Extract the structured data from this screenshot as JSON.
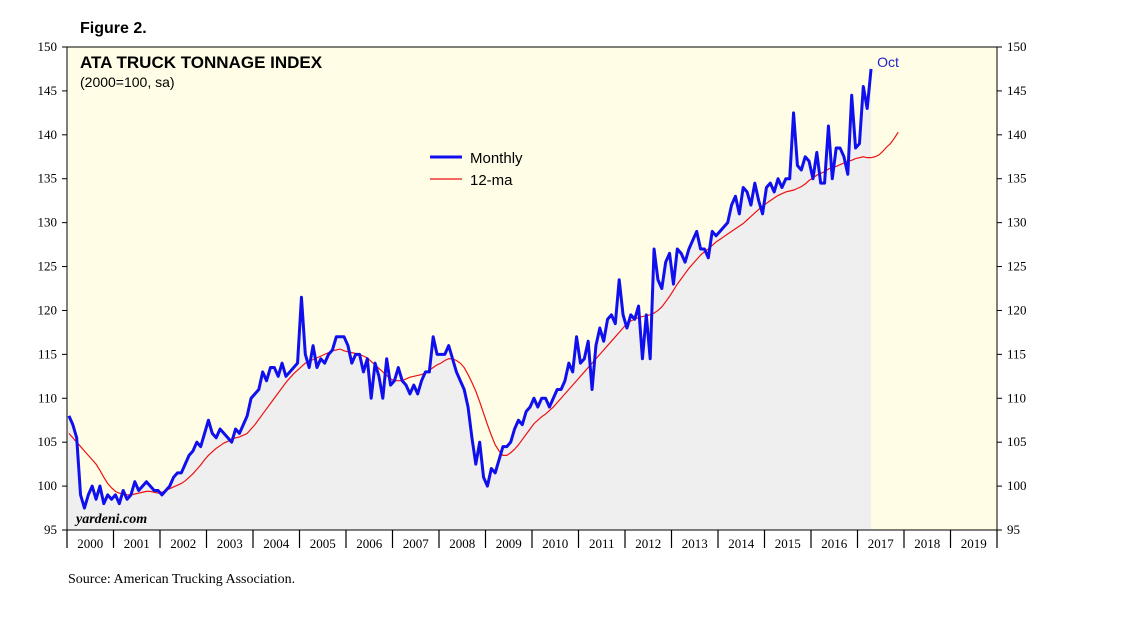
{
  "figure_label": "Figure 2.",
  "source": "Source: American Trucking Association.",
  "watermark": "yardeni.com",
  "colors": {
    "plot_bg": "#fffde6",
    "area_fill": "#efefef",
    "monthly": "#1010ee",
    "ma": "#ee1111",
    "annotation": "#1f1fcc"
  },
  "chart_data": {
    "type": "line",
    "title": "ATA TRUCK TONNAGE INDEX",
    "subtitle": "(2000=100, sa)",
    "xlabel": "",
    "ylabel": "",
    "xlim": [
      2000,
      2020
    ],
    "ylim": [
      95,
      150
    ],
    "yticks": [
      95,
      100,
      105,
      110,
      115,
      120,
      125,
      130,
      135,
      140,
      145,
      150
    ],
    "xtick_labels": [
      "2000",
      "2001",
      "2002",
      "2003",
      "2004",
      "2005",
      "2006",
      "2007",
      "2008",
      "2009",
      "2010",
      "2011",
      "2012",
      "2013",
      "2014",
      "2015",
      "2016",
      "2017",
      "2018",
      "2019"
    ],
    "legend": [
      "Monthly",
      "12-ma"
    ],
    "legend_position": "top-center",
    "annotation": {
      "text": "Oct",
      "series": "Monthly"
    },
    "series": [
      {
        "name": "Monthly",
        "start": [
          2000,
          1
        ],
        "values": [
          108.0,
          107.0,
          105.5,
          99.0,
          97.5,
          99.0,
          100.0,
          98.5,
          100.0,
          98.0,
          99.0,
          98.5,
          99.0,
          98.0,
          99.5,
          98.5,
          99.0,
          100.5,
          99.5,
          100.0,
          100.5,
          100.0,
          99.5,
          99.5,
          99.0,
          99.5,
          100.0,
          101.0,
          101.5,
          101.5,
          102.5,
          103.5,
          104.0,
          105.0,
          104.5,
          106.0,
          107.5,
          106.0,
          105.5,
          106.5,
          106.0,
          105.5,
          105.0,
          106.5,
          106.0,
          107.0,
          108.0,
          110.0,
          110.5,
          111.0,
          113.0,
          112.0,
          113.5,
          113.5,
          112.5,
          114.0,
          112.5,
          113.0,
          113.5,
          114.0,
          121.5,
          115.0,
          113.5,
          116.0,
          113.5,
          114.5,
          114.0,
          115.0,
          115.5,
          117.0,
          117.0,
          117.0,
          116.0,
          114.0,
          115.0,
          115.0,
          113.0,
          114.5,
          110.0,
          114.0,
          112.5,
          110.0,
          114.5,
          111.5,
          112.0,
          113.5,
          112.0,
          111.5,
          110.5,
          111.5,
          110.5,
          112.0,
          113.0,
          113.0,
          117.0,
          115.0,
          115.0,
          115.0,
          116.0,
          114.5,
          113.0,
          112.0,
          111.0,
          109.0,
          105.5,
          102.5,
          105.0,
          101.0,
          100.0,
          102.0,
          101.5,
          103.0,
          104.5,
          104.5,
          105.0,
          106.5,
          107.5,
          107.0,
          108.5,
          109.0,
          110.0,
          109.0,
          110.0,
          110.0,
          109.0,
          110.0,
          111.0,
          111.0,
          112.0,
          114.0,
          113.0,
          117.0,
          114.0,
          114.5,
          116.5,
          111.0,
          116.0,
          118.0,
          116.5,
          119.0,
          119.5,
          118.5,
          123.5,
          119.5,
          118.0,
          119.5,
          119.0,
          120.5,
          114.5,
          119.5,
          114.5,
          127.0,
          123.5,
          122.5,
          125.5,
          126.5,
          123.0,
          127.0,
          126.5,
          125.5,
          127.0,
          128.0,
          129.0,
          127.0,
          127.0,
          126.0,
          129.0,
          128.5,
          129.0,
          129.5,
          130.0,
          132.0,
          133.0,
          131.0,
          134.0,
          133.5,
          132.0,
          134.5,
          132.5,
          131.0,
          134.0,
          134.5,
          133.5,
          135.0,
          134.0,
          135.0,
          135.0,
          142.5,
          136.5,
          136.0,
          137.5,
          137.0,
          135.0,
          138.0,
          134.5,
          134.5,
          141.0,
          135.0,
          138.5,
          138.5,
          137.5,
          135.5,
          144.5,
          138.5,
          139.0,
          145.5,
          143.0,
          147.5
        ]
      },
      {
        "name": "12-ma",
        "start": [
          2000,
          1
        ],
        "values": [
          106.0,
          105.5,
          105.0,
          104.5,
          104.0,
          103.5,
          103.0,
          102.5,
          101.8,
          101.0,
          100.3,
          99.8,
          99.4,
          99.2,
          99.1,
          99.0,
          99.0,
          99.1,
          99.2,
          99.3,
          99.4,
          99.4,
          99.3,
          99.2,
          99.3,
          99.5,
          99.7,
          99.9,
          100.1,
          100.3,
          100.6,
          101.0,
          101.4,
          101.9,
          102.4,
          103.0,
          103.5,
          103.9,
          104.3,
          104.6,
          104.9,
          105.1,
          105.3,
          105.5,
          105.6,
          105.8,
          106.0,
          106.5,
          107.0,
          107.6,
          108.2,
          108.8,
          109.4,
          110.0,
          110.6,
          111.2,
          111.8,
          112.3,
          112.8,
          113.2,
          113.6,
          114.0,
          114.2,
          114.4,
          114.6,
          114.8,
          115.0,
          115.2,
          115.4,
          115.5,
          115.6,
          115.4,
          115.3,
          115.2,
          115.1,
          115.0,
          114.8,
          114.6,
          114.2,
          113.8,
          113.4,
          113.0,
          112.6,
          112.2,
          112.0,
          112.0,
          112.0,
          112.2,
          112.4,
          112.5,
          112.6,
          112.7,
          112.9,
          113.2,
          113.5,
          113.8,
          114.0,
          114.3,
          114.5,
          114.5,
          114.3,
          114.0,
          113.5,
          112.7,
          111.8,
          110.8,
          109.6,
          108.3,
          107.0,
          105.8,
          104.7,
          104.0,
          103.5,
          103.5,
          103.8,
          104.2,
          104.7,
          105.3,
          105.9,
          106.5,
          107.1,
          107.5,
          107.9,
          108.2,
          108.6,
          109.0,
          109.5,
          110.0,
          110.5,
          111.0,
          111.5,
          112.0,
          112.5,
          113.0,
          113.5,
          114.0,
          114.5,
          115.0,
          115.5,
          116.0,
          116.5,
          117.0,
          117.5,
          118.0,
          118.5,
          118.8,
          119.0,
          119.2,
          119.3,
          119.4,
          119.5,
          119.7,
          120.0,
          120.4,
          121.0,
          121.6,
          122.3,
          123.0,
          123.6,
          124.2,
          124.8,
          125.3,
          125.8,
          126.3,
          126.7,
          127.0,
          127.4,
          127.8,
          128.1,
          128.4,
          128.7,
          129.0,
          129.3,
          129.6,
          129.9,
          130.3,
          130.7,
          131.1,
          131.5,
          131.9,
          132.2,
          132.5,
          132.8,
          133.1,
          133.3,
          133.5,
          133.6,
          133.7,
          133.9,
          134.1,
          134.4,
          134.8,
          135.1,
          135.4,
          135.6,
          135.8,
          136.1,
          136.3,
          136.4,
          136.6,
          136.8,
          137.0,
          137.1,
          137.3,
          137.4,
          137.5,
          137.4,
          137.4,
          137.5,
          137.7,
          138.1,
          138.6,
          139.0,
          139.6,
          140.3
        ]
      }
    ]
  },
  "legend_labels": {
    "monthly": "Monthly",
    "ma": "12-ma"
  }
}
